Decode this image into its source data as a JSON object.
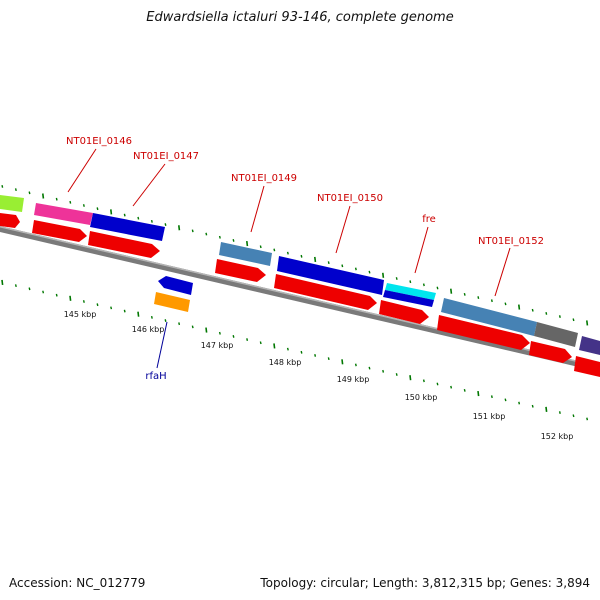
{
  "title": "Edwardsiella ictaluri 93-146, complete genome",
  "footer": {
    "accession": "Accession: NC_012779",
    "summary": "Topology: circular; Length: 3,812,315 bp; Genes: 3,894"
  },
  "colors": {
    "backbone": "#7a7a7a",
    "cds": "#ee0000",
    "tick": "#007700",
    "label_red": "#cc0000",
    "label_blue": "#000099"
  },
  "scale_labels": [
    "145 kbp",
    "146 kbp",
    "147 kbp",
    "148 kbp",
    "149 kbp",
    "150 kbp",
    "151 kbp",
    "152 kbp"
  ],
  "gene_labels": [
    {
      "text": "NT01EI_0146",
      "color": "red"
    },
    {
      "text": "NT01EI_0147",
      "color": "red"
    },
    {
      "text": "NT01EI_0149",
      "color": "red"
    },
    {
      "text": "NT01EI_0150",
      "color": "red"
    },
    {
      "text": "fre",
      "color": "red"
    },
    {
      "text": "NT01EI_0152",
      "color": "red"
    },
    {
      "text": "rfaH",
      "color": "blue"
    }
  ]
}
